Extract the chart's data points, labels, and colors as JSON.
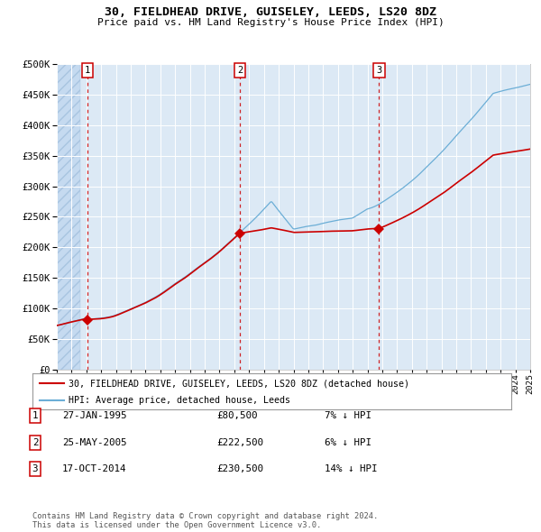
{
  "title": "30, FIELDHEAD DRIVE, GUISELEY, LEEDS, LS20 8DZ",
  "subtitle": "Price paid vs. HM Land Registry's House Price Index (HPI)",
  "legend_line1": "30, FIELDHEAD DRIVE, GUISELEY, LEEDS, LS20 8DZ (detached house)",
  "legend_line2": "HPI: Average price, detached house, Leeds",
  "sale_times": [
    1995.07,
    2005.4,
    2014.79
  ],
  "sale_prices": [
    80500,
    222500,
    230500
  ],
  "sale_labels": [
    "1",
    "2",
    "3"
  ],
  "table_rows": [
    [
      "1",
      "27-JAN-1995",
      "£80,500",
      "7% ↓ HPI"
    ],
    [
      "2",
      "25-MAY-2005",
      "£222,500",
      "6% ↓ HPI"
    ],
    [
      "3",
      "17-OCT-2014",
      "£230,500",
      "14% ↓ HPI"
    ]
  ],
  "footer": "Contains HM Land Registry data © Crown copyright and database right 2024.\nThis data is licensed under the Open Government Licence v3.0.",
  "hpi_color": "#6baed6",
  "price_color": "#cc0000",
  "bg_color": "#dce9f5",
  "hatch_color": "#b8cfe8",
  "grid_color": "#ffffff",
  "ylim": [
    0,
    500000
  ],
  "yticks": [
    0,
    50000,
    100000,
    150000,
    200000,
    250000,
    300000,
    350000,
    400000,
    450000,
    500000
  ],
  "x_start_year": 1993,
  "x_end_year": 2025
}
